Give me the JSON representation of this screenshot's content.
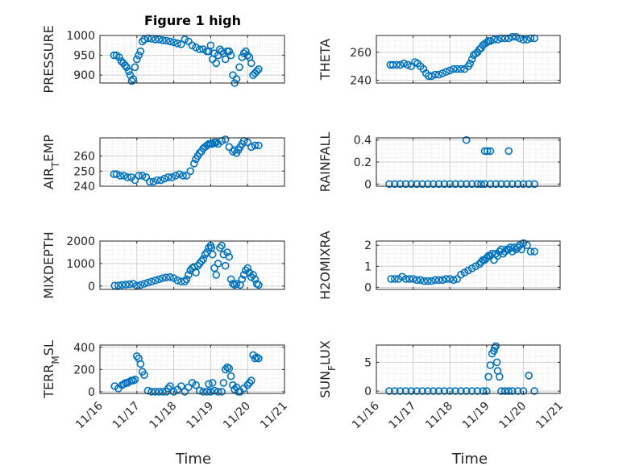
{
  "figure": {
    "title": "Figure 1 high",
    "xlabel": "Time"
  },
  "colors": {
    "marker": "#0072BD",
    "axis": "#262626",
    "grid": "#d0d0d0"
  },
  "xticks": [
    "11/16",
    "11/17",
    "11/18",
    "11/19",
    "11/20",
    "11/21"
  ],
  "chart_data": [
    {
      "type": "scatter",
      "title": "Figure 1 high",
      "ylabel": "PRESSURE",
      "ylim": [
        880,
        1000
      ],
      "yticks": [
        900,
        950,
        1000
      ],
      "xlim": [
        16,
        21
      ],
      "grid": true,
      "x": [
        16.38,
        16.45,
        16.52,
        16.58,
        16.63,
        16.68,
        16.72,
        16.78,
        16.82,
        16.86,
        16.9,
        16.95,
        17.0,
        17.05,
        17.1,
        17.15,
        17.2,
        17.3,
        17.4,
        17.5,
        17.6,
        17.7,
        17.8,
        17.9,
        18.0,
        18.1,
        18.2,
        18.3,
        18.4,
        18.5,
        18.6,
        18.7,
        18.8,
        18.9,
        18.95,
        19.0,
        19.05,
        19.1,
        19.15,
        19.2,
        19.25,
        19.3,
        19.35,
        19.4,
        19.45,
        19.5,
        19.55,
        19.6,
        19.65,
        19.7,
        19.78,
        19.85,
        19.9,
        19.95,
        20.0,
        20.05,
        20.1,
        20.15,
        20.2,
        20.25,
        20.3
      ],
      "y": [
        950,
        950,
        945,
        935,
        930,
        925,
        920,
        910,
        900,
        885,
        890,
        920,
        940,
        950,
        960,
        985,
        990,
        993,
        992,
        990,
        990,
        988,
        987,
        985,
        983,
        980,
        978,
        990,
        985,
        975,
        970,
        965,
        965,
        960,
        960,
        975,
        940,
        955,
        930,
        950,
        965,
        960,
        955,
        940,
        960,
        960,
        950,
        900,
        880,
        890,
        920,
        945,
        955,
        960,
        950,
        945,
        930,
        900,
        905,
        910,
        915
      ]
    },
    {
      "type": "scatter",
      "ylabel": "THETA",
      "ylim": [
        238,
        272
      ],
      "yticks": [
        240,
        260
      ],
      "xlim": [
        16,
        21
      ],
      "grid": true,
      "x": [
        16.38,
        16.45,
        16.55,
        16.65,
        16.75,
        16.85,
        16.95,
        17.05,
        17.12,
        17.2,
        17.28,
        17.35,
        17.42,
        17.5,
        17.6,
        17.7,
        17.8,
        17.9,
        18.0,
        18.1,
        18.2,
        18.3,
        18.4,
        18.5,
        18.55,
        18.6,
        18.65,
        18.7,
        18.75,
        18.8,
        18.85,
        18.9,
        18.95,
        19.0,
        19.05,
        19.1,
        19.2,
        19.3,
        19.4,
        19.5,
        19.6,
        19.7,
        19.8,
        19.9,
        20.0,
        20.1,
        20.2,
        20.3
      ],
      "y": [
        251,
        251,
        251,
        251,
        252,
        251,
        250,
        253,
        252,
        250,
        248,
        245,
        243,
        243,
        244,
        244,
        245,
        246,
        247,
        248,
        248,
        248,
        248,
        250,
        252,
        255,
        258,
        259,
        260,
        262,
        263,
        265,
        266,
        267,
        268,
        268,
        269,
        269,
        270,
        270,
        270,
        271,
        271,
        270,
        269,
        269,
        270,
        270
      ]
    },
    {
      "type": "scatter",
      "ylabel": "AIR_TEMP",
      "ylim": [
        240,
        272
      ],
      "yticks": [
        240,
        250,
        260
      ],
      "xlim": [
        16,
        21
      ],
      "grid": true,
      "x": [
        16.38,
        16.45,
        16.55,
        16.65,
        16.75,
        16.85,
        16.95,
        17.05,
        17.15,
        17.25,
        17.35,
        17.45,
        17.55,
        17.65,
        17.75,
        17.85,
        17.95,
        18.05,
        18.15,
        18.25,
        18.35,
        18.45,
        18.55,
        18.6,
        18.65,
        18.7,
        18.75,
        18.8,
        18.85,
        18.9,
        18.95,
        19.0,
        19.05,
        19.1,
        19.15,
        19.2,
        19.3,
        19.4,
        19.5,
        19.6,
        19.65,
        19.7,
        19.75,
        19.8,
        19.85,
        19.9,
        20.0,
        20.1,
        20.2,
        20.3
      ],
      "y": [
        248,
        248,
        247,
        247,
        246,
        246,
        244,
        247,
        247,
        246,
        243,
        243,
        244,
        244,
        245,
        246,
        246,
        247,
        248,
        247,
        247,
        250,
        255,
        258,
        260,
        262,
        263,
        265,
        266,
        267,
        268,
        268,
        268,
        269,
        269,
        268,
        270,
        271,
        266,
        263,
        264,
        262,
        264,
        266,
        268,
        270,
        269,
        266,
        267,
        267
      ]
    },
    {
      "type": "scatter",
      "ylabel": "RAINFALL",
      "ylim": [
        -0.02,
        0.42
      ],
      "yticks": [
        0,
        0.2,
        0.4
      ],
      "xlim": [
        16,
        21
      ],
      "grid": true,
      "x": [
        16.35,
        16.5,
        16.65,
        16.8,
        16.95,
        17.1,
        17.25,
        17.4,
        17.55,
        17.7,
        17.85,
        18.0,
        18.15,
        18.3,
        18.45,
        18.6,
        18.75,
        18.85,
        18.95,
        19.1,
        19.25,
        19.4,
        19.55,
        19.7,
        19.85,
        20.0,
        20.15,
        20.3,
        18.45,
        18.95,
        19.02,
        19.1,
        19.6
      ],
      "y": [
        0,
        0,
        0,
        0,
        0,
        0,
        0,
        0,
        0,
        0,
        0,
        0,
        0,
        0,
        0,
        0,
        0,
        0,
        0,
        0,
        0,
        0,
        0,
        0,
        0,
        0,
        0,
        0,
        0.4,
        0.3,
        0.3,
        0.3,
        0.3
      ]
    },
    {
      "type": "scatter",
      "ylabel": "MIXDEPTH",
      "ylim": [
        -150,
        2000
      ],
      "yticks": [
        0,
        1000,
        2000
      ],
      "xlim": [
        16,
        21
      ],
      "grid": true,
      "x": [
        16.4,
        16.5,
        16.6,
        16.7,
        16.8,
        16.9,
        17.0,
        17.1,
        17.2,
        17.3,
        17.4,
        17.5,
        17.6,
        17.7,
        17.8,
        17.9,
        18.0,
        18.1,
        18.2,
        18.3,
        18.35,
        18.4,
        18.45,
        18.5,
        18.55,
        18.6,
        18.65,
        18.7,
        18.75,
        18.8,
        18.85,
        18.9,
        18.95,
        19.0,
        19.02,
        19.05,
        19.1,
        19.15,
        19.2,
        19.25,
        19.3,
        19.35,
        19.4,
        19.45,
        19.5,
        19.55,
        19.6,
        19.65,
        19.7,
        19.8,
        19.85,
        19.9,
        19.95,
        20.0,
        20.05,
        20.1,
        20.15,
        20.2,
        20.25,
        20.3
      ],
      "y": [
        20,
        30,
        50,
        60,
        80,
        100,
        20,
        50,
        100,
        150,
        200,
        250,
        300,
        350,
        380,
        400,
        350,
        250,
        200,
        200,
        300,
        500,
        700,
        800,
        850,
        600,
        900,
        1000,
        1100,
        1200,
        1400,
        1500,
        1700,
        1800,
        1700,
        1400,
        800,
        500,
        1000,
        1700,
        1800,
        1400,
        900,
        1500,
        1300,
        300,
        100,
        50,
        100,
        50,
        300,
        500,
        700,
        800,
        600,
        400,
        500,
        300,
        100,
        50
      ]
    },
    {
      "type": "scatter",
      "ylabel": "H2OMIXRA",
      "ylim": [
        -0.1,
        2.2
      ],
      "yticks": [
        0,
        1,
        2
      ],
      "xlim": [
        16,
        21
      ],
      "grid": true,
      "x": [
        16.4,
        16.5,
        16.6,
        16.7,
        16.8,
        16.9,
        17.0,
        17.1,
        17.2,
        17.3,
        17.4,
        17.5,
        17.6,
        17.7,
        17.8,
        17.9,
        18.0,
        18.1,
        18.2,
        18.3,
        18.4,
        18.5,
        18.6,
        18.7,
        18.8,
        18.85,
        18.9,
        18.95,
        19.0,
        19.05,
        19.1,
        19.15,
        19.2,
        19.25,
        19.3,
        19.35,
        19.4,
        19.45,
        19.5,
        19.55,
        19.6,
        19.65,
        19.7,
        19.75,
        19.8,
        19.85,
        19.9,
        19.95,
        20.0,
        20.1,
        20.2,
        20.3
      ],
      "y": [
        0.4,
        0.4,
        0.4,
        0.5,
        0.4,
        0.4,
        0.4,
        0.35,
        0.35,
        0.3,
        0.3,
        0.3,
        0.35,
        0.35,
        0.35,
        0.4,
        0.4,
        0.35,
        0.4,
        0.6,
        0.7,
        0.8,
        0.9,
        1.0,
        1.1,
        1.2,
        1.3,
        1.3,
        1.4,
        1.5,
        1.5,
        1.6,
        1.3,
        1.6,
        1.5,
        1.7,
        1.8,
        1.6,
        1.7,
        1.8,
        1.8,
        1.9,
        1.7,
        1.9,
        1.8,
        1.9,
        2.0,
        1.8,
        2.1,
        2.0,
        1.7,
        1.7
      ]
    },
    {
      "type": "scatter",
      "ylabel": "TERR_MSL",
      "ylim": [
        -15,
        420
      ],
      "yticks": [
        0,
        200,
        400
      ],
      "xlim": [
        16,
        21
      ],
      "grid": true,
      "x": [
        16.4,
        16.5,
        16.6,
        16.65,
        16.7,
        16.75,
        16.8,
        16.85,
        16.9,
        16.95,
        17.0,
        17.05,
        17.1,
        17.15,
        17.2,
        17.3,
        17.4,
        17.5,
        17.6,
        17.7,
        17.8,
        17.85,
        17.9,
        18.0,
        18.1,
        18.2,
        18.3,
        18.4,
        18.5,
        18.6,
        18.7,
        18.8,
        18.9,
        18.95,
        19.0,
        19.05,
        19.1,
        19.2,
        19.3,
        19.35,
        19.4,
        19.45,
        19.5,
        19.55,
        19.6,
        19.65,
        19.7,
        19.75,
        19.8,
        19.9,
        20.0,
        20.05,
        20.1,
        20.15,
        20.2,
        20.25,
        20.3
      ],
      "y": [
        50,
        30,
        60,
        70,
        80,
        80,
        90,
        100,
        100,
        110,
        320,
        300,
        250,
        180,
        150,
        10,
        0,
        0,
        0,
        0,
        0,
        30,
        50,
        0,
        20,
        50,
        0,
        40,
        80,
        60,
        10,
        0,
        0,
        70,
        0,
        80,
        10,
        0,
        0,
        80,
        200,
        220,
        210,
        140,
        60,
        20,
        40,
        0,
        0,
        30,
        60,
        80,
        100,
        330,
        300,
        310,
        300
      ]
    },
    {
      "type": "scatter",
      "ylabel": "SUN_FLUX",
      "ylim": [
        -0.4,
        8
      ],
      "yticks": [
        0,
        5
      ],
      "xlim": [
        16,
        21
      ],
      "grid": true,
      "x": [
        16.35,
        16.5,
        16.65,
        16.8,
        16.95,
        17.1,
        17.25,
        17.4,
        17.55,
        17.7,
        17.85,
        18.0,
        18.15,
        18.3,
        18.45,
        18.6,
        18.75,
        18.9,
        19.0,
        19.05,
        19.1,
        19.15,
        19.2,
        19.22,
        19.25,
        19.28,
        19.3,
        19.35,
        19.4,
        19.5,
        19.6,
        19.7,
        19.85,
        20.0,
        20.15,
        20.3
      ],
      "y": [
        0,
        0,
        0,
        0,
        0,
        0,
        0,
        0,
        0,
        0,
        0,
        0,
        0,
        0,
        0,
        0,
        0,
        0,
        0,
        2.5,
        4.5,
        6.5,
        7.0,
        7.5,
        7.8,
        5.0,
        3.5,
        2.5,
        0,
        0,
        0,
        0,
        0,
        0,
        2.7,
        0
      ]
    }
  ]
}
